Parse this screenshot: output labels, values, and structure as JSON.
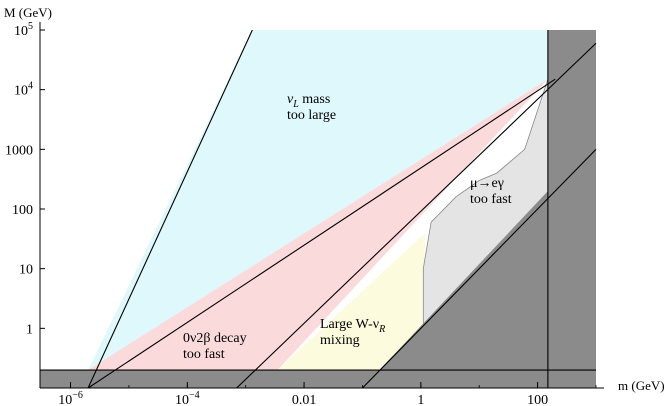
{
  "chart_data": {
    "type": "area",
    "x_scale": "log",
    "y_scale": "log",
    "xlabel": "m (GeV)",
    "ylabel": "M (GeV)",
    "xlim": [
      3e-07,
      1000
    ],
    "ylim": [
      0.1,
      100000
    ],
    "x_ticks": [
      {
        "value": 1e-06,
        "label": "10",
        "sup": "−6"
      },
      {
        "value": 0.0001,
        "label": "10",
        "sup": "−4"
      },
      {
        "value": 0.01,
        "label": "0.01",
        "sup": ""
      },
      {
        "value": 1,
        "label": "1",
        "sup": ""
      },
      {
        "value": 100,
        "label": "100",
        "sup": ""
      }
    ],
    "y_ticks": [
      {
        "value": 1,
        "label": "1",
        "sup": ""
      },
      {
        "value": 10,
        "label": "10",
        "sup": ""
      },
      {
        "value": 100,
        "label": "100",
        "sup": ""
      },
      {
        "value": 1000,
        "label": "1000",
        "sup": ""
      },
      {
        "value": 10000,
        "label": "10",
        "sup": "4"
      },
      {
        "value": 100000,
        "label": "10",
        "sup": "5"
      }
    ],
    "boundaries": [
      {
        "x": [
          2e-06,
          0.0013
        ],
        "y": [
          0.1,
          100000
        ]
      },
      {
        "x": [
          2e-06,
          200
        ],
        "y": [
          0.1,
          15000
        ]
      },
      {
        "x": [
          0.0007,
          1000
        ],
        "y": [
          0.1,
          60000
        ]
      },
      {
        "x": [
          0.1,
          1000
        ],
        "y": [
          0.1,
          1000
        ]
      },
      {
        "x": [
          150,
          150
        ],
        "y": [
          0.1,
          100000
        ]
      },
      {
        "x": [
          3e-07,
          1000
        ],
        "y": [
          0.2,
          0.2
        ]
      }
    ],
    "regions": [
      {
        "label_lines": [
          "ν",
          "mass",
          "too large"
        ],
        "subscript": "L",
        "color": "#dff8fb",
        "polygon": [
          [
            0.0013,
            100000
          ],
          [
            150,
            100000
          ],
          [
            150,
            15000
          ],
          [
            2e-06,
            0.2
          ]
        ]
      },
      {
        "label_lines": [
          "0ν2β decay",
          "too fast"
        ],
        "color": "#fadada",
        "polygon": [
          [
            2e-06,
            0.2
          ],
          [
            150,
            15000
          ],
          [
            0.0035,
            0.2
          ]
        ]
      },
      {
        "label_lines": [
          "Large W-ν",
          "mixing"
        ],
        "subscript": "R",
        "color": "#fcfbdd",
        "polygon": [
          [
            0.0035,
            0.2
          ],
          [
            1.2,
            40
          ],
          [
            1.1,
            5
          ],
          [
            1.1,
            1.2
          ],
          [
            0.2,
            0.2
          ]
        ]
      },
      {
        "label_lines": [
          "μ→eγ",
          "too fast"
        ],
        "color": "#e4e4e4",
        "polygon": [
          [
            1.1,
            1.2
          ],
          [
            1.1,
            10
          ],
          [
            1.5,
            60
          ],
          [
            4,
            160
          ],
          [
            10,
            300
          ],
          [
            20,
            400
          ],
          [
            60,
            1000
          ],
          [
            150,
            15000
          ],
          [
            150,
            200
          ]
        ]
      }
    ],
    "excluded_color": "#8b8b8b"
  }
}
